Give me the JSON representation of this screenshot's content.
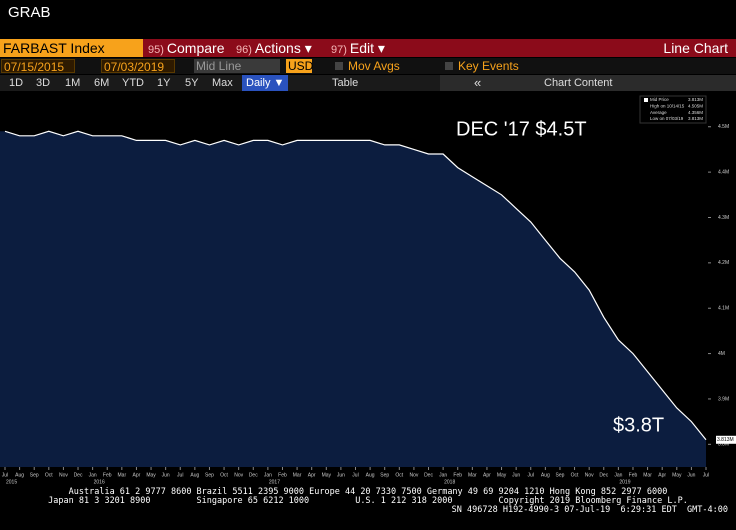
{
  "window_title": "GRAB",
  "security": "FARBAST Index",
  "menu": [
    {
      "key": "95)",
      "label": "Compare"
    },
    {
      "key": "96)",
      "label": "Actions ▾"
    },
    {
      "key": "97)",
      "label": "Edit ▾"
    }
  ],
  "view_title": "Line Chart",
  "settings": {
    "start_date": "07/15/2015",
    "end_date": "07/03/2019",
    "line_type": "Mid Line",
    "currency": "USD",
    "mov_avgs": "Mov Avgs",
    "key_events": "Key Events"
  },
  "toolbar": {
    "ranges": [
      "1D",
      "3D",
      "1M",
      "6M",
      "YTD",
      "1Y",
      "5Y",
      "Max"
    ],
    "frequency": "Daily ▼",
    "table": "Table",
    "collapse": "«",
    "chart_content": "Chart Content"
  },
  "chart_data": {
    "type": "area",
    "categories": [
      "Jul",
      "Aug",
      "Sep",
      "Oct",
      "Nov",
      "Dec",
      "Jan",
      "Feb",
      "Mar",
      "Apr",
      "May",
      "Jun",
      "Jul",
      "Aug",
      "Sep",
      "Oct",
      "Nov",
      "Dec",
      "Jan",
      "Feb",
      "Mar",
      "Apr",
      "May",
      "Jun",
      "Jul",
      "Aug",
      "Sep",
      "Oct",
      "Nov",
      "Dec",
      "Jan",
      "Feb",
      "Mar",
      "Apr",
      "May",
      "Jun",
      "Jul",
      "Aug",
      "Sep",
      "Oct",
      "Nov",
      "Dec",
      "Jan",
      "Feb",
      "Mar",
      "Apr",
      "May",
      "Jun",
      "Jul"
    ],
    "years": [
      "2015",
      "2016",
      "2017",
      "2018",
      "2019"
    ],
    "values": [
      4.49,
      4.48,
      4.48,
      4.49,
      4.48,
      4.49,
      4.48,
      4.48,
      4.48,
      4.47,
      4.47,
      4.47,
      4.46,
      4.47,
      4.46,
      4.47,
      4.46,
      4.47,
      4.47,
      4.46,
      4.47,
      4.47,
      4.47,
      4.47,
      4.47,
      4.47,
      4.46,
      4.46,
      4.45,
      4.44,
      4.44,
      4.41,
      4.39,
      4.37,
      4.35,
      4.32,
      4.29,
      4.25,
      4.21,
      4.18,
      4.14,
      4.08,
      4.03,
      4.0,
      3.96,
      3.92,
      3.88,
      3.85,
      3.81
    ],
    "fill_color": "#0c1d3f",
    "line_color": "#ffffff",
    "ylim": [
      3.75,
      4.57
    ],
    "yticks": [
      {
        "value": 3.8,
        "label": "3.8M"
      },
      {
        "value": 3.9,
        "label": "3.9M"
      },
      {
        "value": 4,
        "label": "4M"
      },
      {
        "value": 4.1,
        "label": "4.1M"
      },
      {
        "value": 4.2,
        "label": "4.2M"
      },
      {
        "value": 4.3,
        "label": "4.3M"
      },
      {
        "value": 4.4,
        "label": "4.4M"
      },
      {
        "value": 4.5,
        "label": "4.5M"
      }
    ],
    "last_price_label": "3.813M",
    "legend": [
      {
        "label": "Mid Price",
        "value": "3.813M"
      },
      {
        "label": "High on 10/14/15",
        "value": "4.505M"
      },
      {
        "label": "Average",
        "value": "4.356M"
      },
      {
        "label": "Low on 07/03/19",
        "value": "3.813M"
      }
    ],
    "annotations": [
      "DEC '17 $4.5T",
      "$3.8T"
    ]
  },
  "footer": [
    "Australia 61 2 9777 8600 Brazil 5511 2395 9000 Europe 44 20 7330 7500 Germany 49 69 9204 1210 Hong Kong 852 2977 6000",
    "Japan 81 3 3201 8900         Singapore 65 6212 1000         U.S. 1 212 318 2000         Copyright 2019 Bloomberg Finance L.P.",
    "SN 496728 H192-4990-3 07-Jul-19  6:29:31 EDT  GMT-4:00"
  ]
}
